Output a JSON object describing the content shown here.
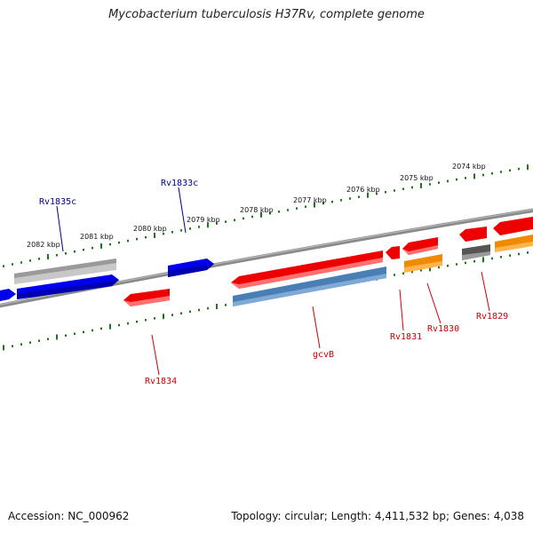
{
  "title": "Mycobacterium tuberculosis H37Rv, complete genome",
  "footer": {
    "accession": "Accession: NC_000962",
    "summary": "Topology: circular; Length: 4,411,532 bp; Genes: 4,038"
  },
  "colors": {
    "backbone": "#777777",
    "ticks": "#1a7a1a",
    "forward_gene": "#0000ee",
    "reverse_gene": "#ee0000",
    "forward_label": "#00008b",
    "reverse_label": "#cc0000"
  },
  "kbp_labels": [
    "2082 kbp",
    "2081 kbp",
    "2080 kbp",
    "2079 kbp",
    "2078 kbp",
    "2077 kbp",
    "2076 kbp",
    "2075 kbp",
    "2074 kbp"
  ],
  "gene_labels": [
    "Rv1835c",
    "Rv1833c",
    "Rv1834",
    "gcvB",
    "Rv1831",
    "Rv1830",
    "Rv1829"
  ]
}
